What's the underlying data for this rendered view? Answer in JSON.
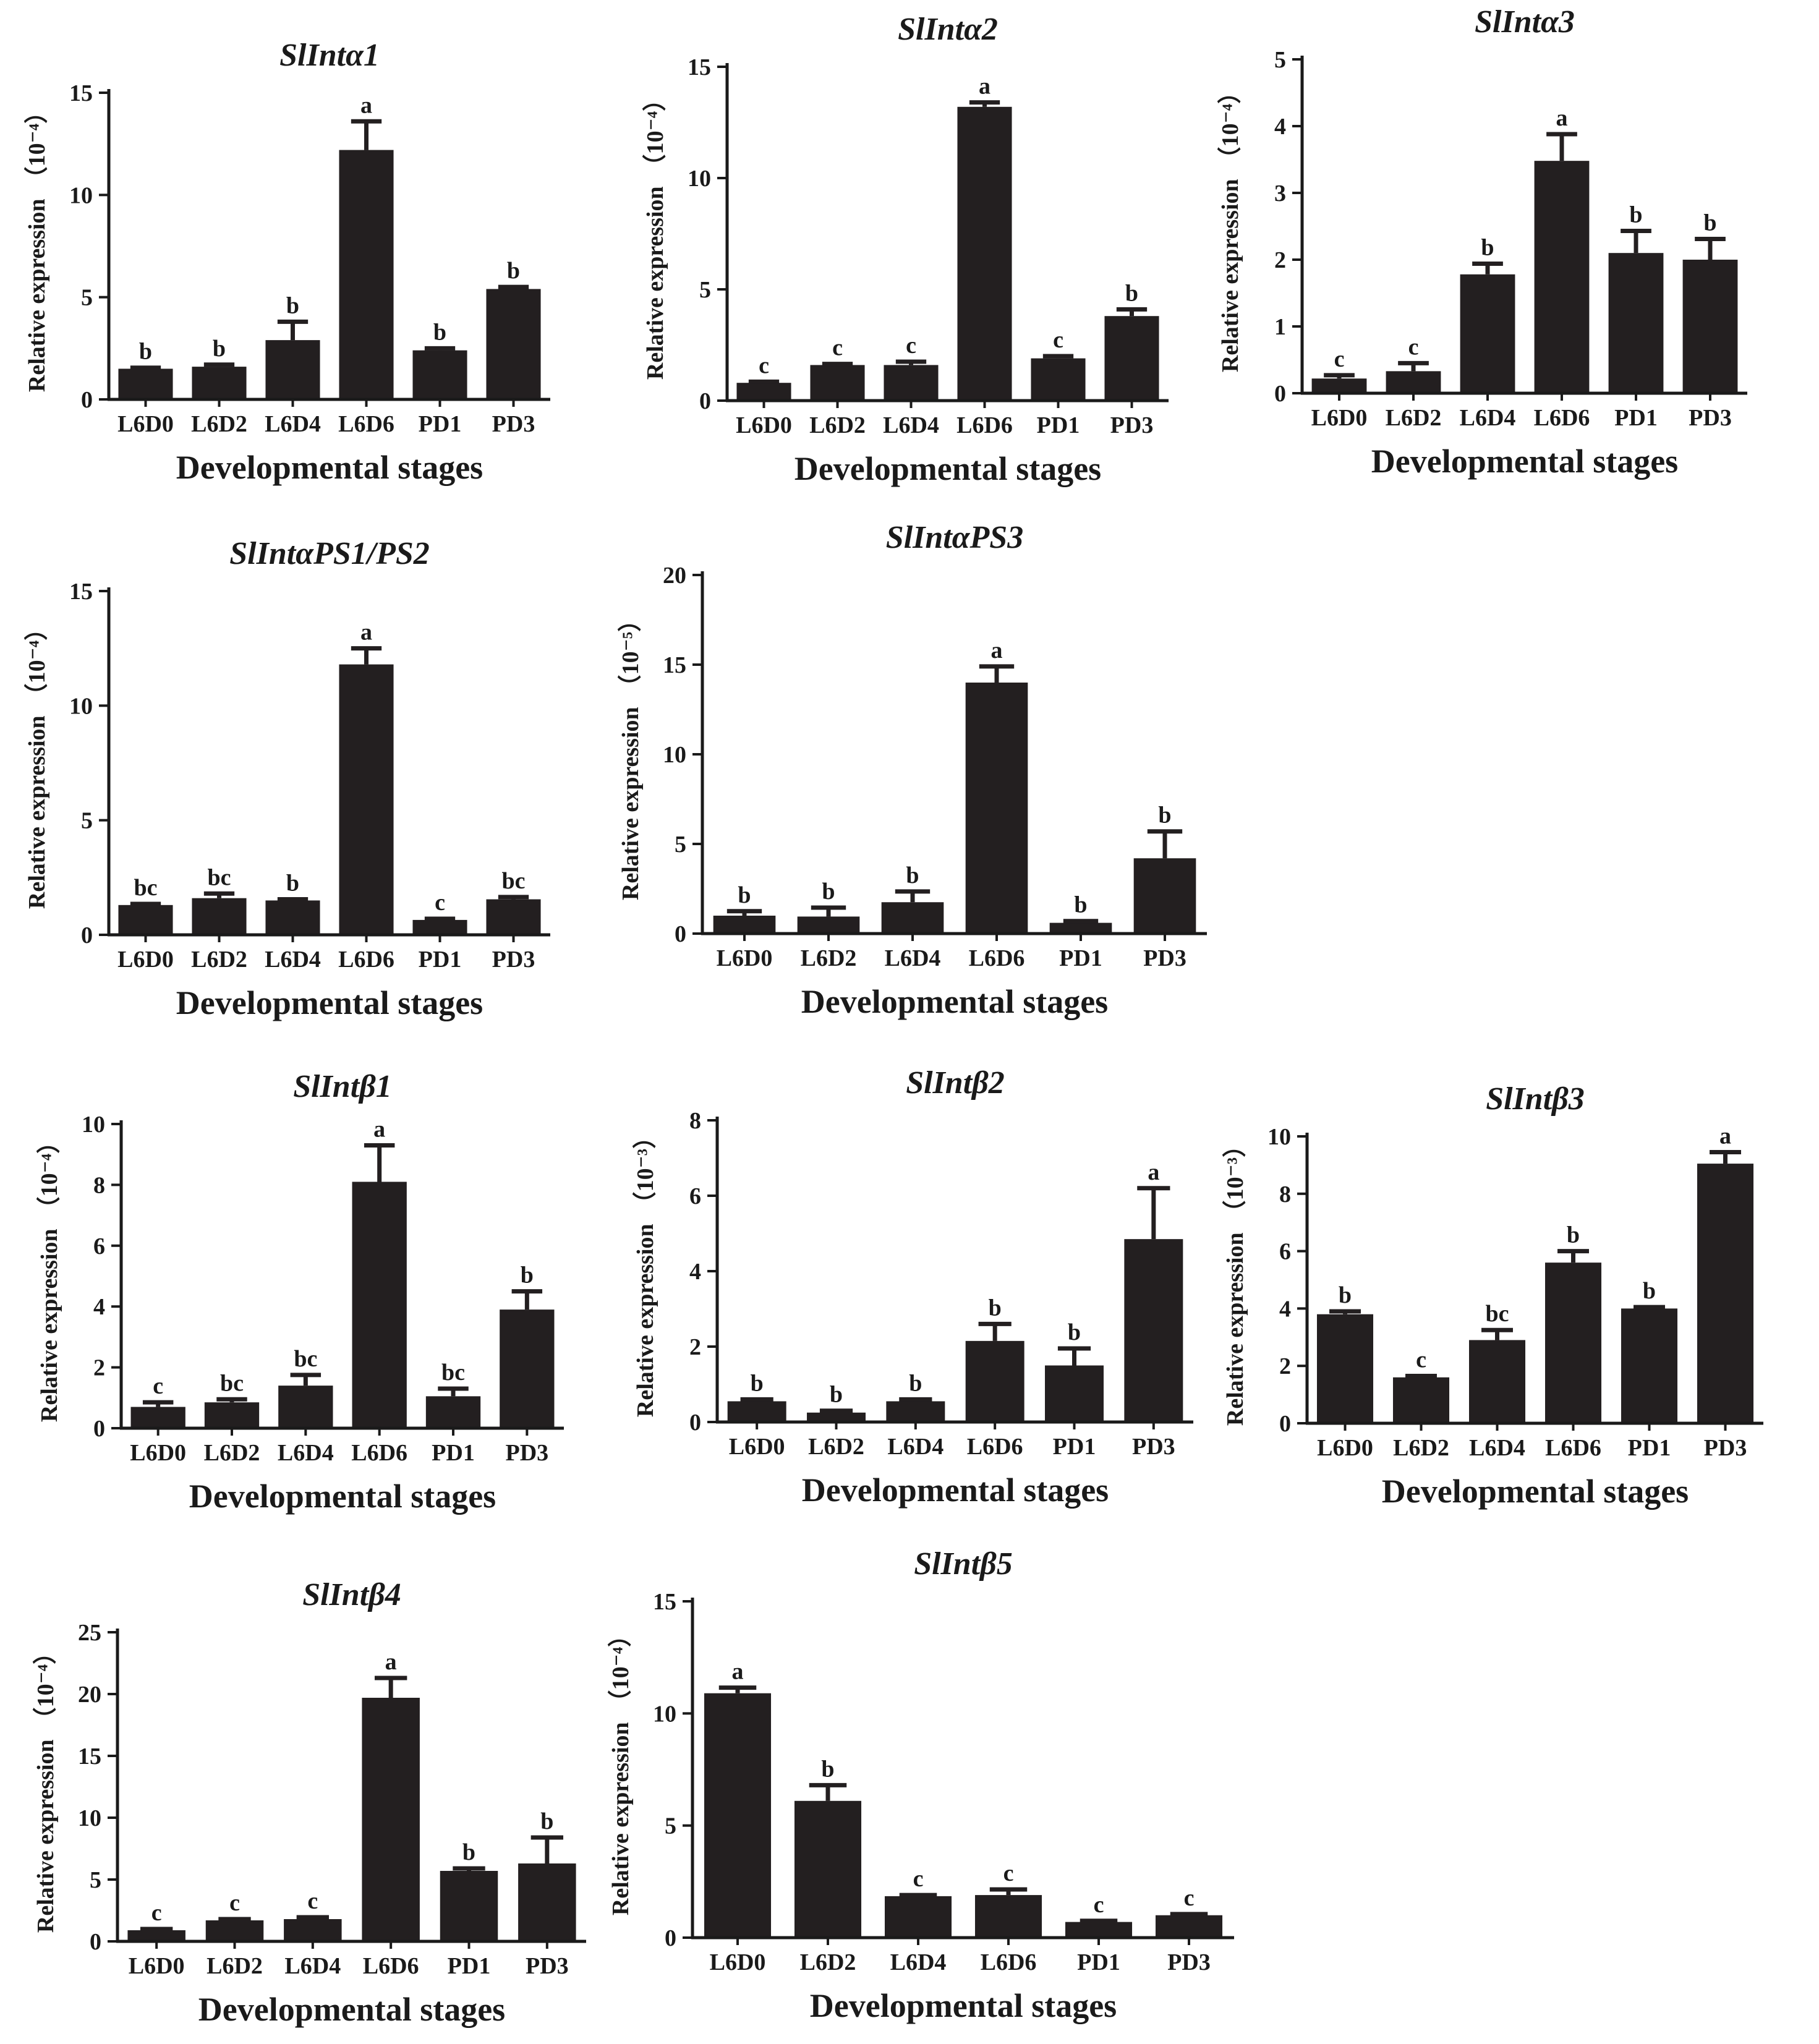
{
  "colors": {
    "bar": "#231f20",
    "axis": "#1a1a1a",
    "background": "#ffffff"
  },
  "chart_data": [
    {
      "type": "bar",
      "title": "SlIntα1",
      "xlabel": "Developmental stages",
      "ylabel": "Relative expression",
      "unit": "（10⁻⁴）",
      "categories": [
        "L6D0",
        "L6D2",
        "L6D4",
        "L6D6",
        "PD1",
        "PD3"
      ],
      "values": [
        1.5,
        1.6,
        2.9,
        12.2,
        2.4,
        5.4
      ],
      "errors": [
        0.05,
        0.1,
        0.9,
        1.4,
        0.1,
        0.1
      ],
      "letters": [
        "b",
        "b",
        "b",
        "a",
        "b",
        "b"
      ],
      "ylim": [
        0,
        15
      ],
      "yticks": [
        0,
        5,
        10,
        15
      ]
    },
    {
      "type": "bar",
      "title": "SlIntα2",
      "xlabel": "Developmental stages",
      "ylabel": "Relative expression",
      "unit": "（10⁻⁴）",
      "categories": [
        "L6D0",
        "L6D2",
        "L6D4",
        "L6D6",
        "PD1",
        "PD3"
      ],
      "values": [
        0.8,
        1.6,
        1.6,
        13.2,
        1.9,
        3.8
      ],
      "errors": [
        0.05,
        0.05,
        0.15,
        0.2,
        0.1,
        0.3
      ],
      "letters": [
        "c",
        "c",
        "c",
        "a",
        "c",
        "b"
      ],
      "ylim": [
        0,
        15
      ],
      "yticks": [
        0,
        5,
        10,
        15
      ]
    },
    {
      "type": "bar",
      "title": "SlIntα3",
      "xlabel": "Developmental stages",
      "ylabel": "Relative expression",
      "unit": "（10⁻⁴）",
      "categories": [
        "L6D0",
        "L6D2",
        "L6D4",
        "L6D6",
        "PD1",
        "PD3"
      ],
      "values": [
        0.22,
        0.33,
        1.78,
        3.48,
        2.1,
        2.0
      ],
      "errors": [
        0.05,
        0.12,
        0.16,
        0.4,
        0.33,
        0.31
      ],
      "letters": [
        "c",
        "c",
        "b",
        "a",
        "b",
        "b"
      ],
      "ylim": [
        0,
        5
      ],
      "yticks": [
        0,
        1,
        2,
        3,
        4,
        5
      ]
    },
    {
      "type": "bar",
      "title": "SlIntαPS1/PS2",
      "xlabel": "Developmental stages",
      "ylabel": "Relative expression",
      "unit": "（10⁻⁴）",
      "categories": [
        "L6D0",
        "L6D2",
        "L6D4",
        "L6D6",
        "PD1",
        "PD3"
      ],
      "values": [
        1.3,
        1.6,
        1.5,
        11.8,
        0.65,
        1.55
      ],
      "errors": [
        0.05,
        0.2,
        0.05,
        0.7,
        0.05,
        0.1
      ],
      "letters": [
        "bc",
        "bc",
        "b",
        "a",
        "c",
        "bc"
      ],
      "ylim": [
        0,
        15
      ],
      "yticks": [
        0,
        5,
        10,
        15
      ]
    },
    {
      "type": "bar",
      "title": "SlIntαPS3",
      "xlabel": "Developmental stages",
      "ylabel": "Relative expression",
      "unit": "（10⁻⁵）",
      "categories": [
        "L6D0",
        "L6D2",
        "L6D4",
        "L6D6",
        "PD1",
        "PD3"
      ],
      "values": [
        1.0,
        0.95,
        1.75,
        14.0,
        0.6,
        4.2
      ],
      "errors": [
        0.25,
        0.5,
        0.6,
        0.9,
        0.1,
        1.5
      ],
      "letters": [
        "b",
        "b",
        "b",
        "a",
        "b",
        "b"
      ],
      "ylim": [
        0,
        20
      ],
      "yticks": [
        0,
        5,
        10,
        15,
        20
      ]
    },
    {
      "type": "bar",
      "title": "SlIntβ1",
      "xlabel": "Developmental stages",
      "ylabel": "Relative expression",
      "unit": "（10⁻⁴）",
      "categories": [
        "L6D0",
        "L6D2",
        "L6D4",
        "L6D6",
        "PD1",
        "PD3"
      ],
      "values": [
        0.7,
        0.85,
        1.4,
        8.1,
        1.05,
        3.9
      ],
      "errors": [
        0.15,
        0.1,
        0.35,
        1.2,
        0.25,
        0.6
      ],
      "letters": [
        "c",
        "bc",
        "bc",
        "a",
        "bc",
        "b"
      ],
      "ylim": [
        0,
        10
      ],
      "yticks": [
        0,
        2,
        4,
        6,
        8,
        10
      ]
    },
    {
      "type": "bar",
      "title": "SlIntβ2",
      "xlabel": "Developmental stages",
      "ylabel": "Relative expression",
      "unit": "（10⁻³）",
      "categories": [
        "L6D0",
        "L6D2",
        "L6D4",
        "L6D6",
        "PD1",
        "PD3"
      ],
      "values": [
        0.55,
        0.25,
        0.55,
        2.15,
        1.5,
        4.85
      ],
      "errors": [
        0.05,
        0.05,
        0.05,
        0.45,
        0.45,
        1.35
      ],
      "letters": [
        "b",
        "b",
        "b",
        "b",
        "b",
        "a"
      ],
      "ylim": [
        0,
        8
      ],
      "yticks": [
        0,
        2,
        4,
        6,
        8
      ]
    },
    {
      "type": "bar",
      "title": "SlIntβ3",
      "xlabel": "Developmental stages",
      "ylabel": "Relative expression",
      "unit": "（10⁻³）",
      "categories": [
        "L6D0",
        "L6D2",
        "L6D4",
        "L6D6",
        "PD1",
        "PD3"
      ],
      "values": [
        3.8,
        1.6,
        2.9,
        5.6,
        4.0,
        9.05
      ],
      "errors": [
        0.1,
        0.05,
        0.35,
        0.4,
        0.05,
        0.4
      ],
      "letters": [
        "b",
        "c",
        "bc",
        "b",
        "b",
        "a"
      ],
      "ylim": [
        0,
        10
      ],
      "yticks": [
        0,
        2,
        4,
        6,
        8,
        10
      ]
    },
    {
      "type": "bar",
      "title": "SlIntβ4",
      "xlabel": "Developmental stages",
      "ylabel": "Relative expression",
      "unit": "（10⁻⁴）",
      "categories": [
        "L6D0",
        "L6D2",
        "L6D4",
        "L6D6",
        "PD1",
        "PD3"
      ],
      "values": [
        0.9,
        1.7,
        1.8,
        19.7,
        5.7,
        6.3
      ],
      "errors": [
        0.1,
        0.1,
        0.15,
        1.6,
        0.2,
        2.1
      ],
      "letters": [
        "c",
        "c",
        "c",
        "a",
        "b",
        "b"
      ],
      "ylim": [
        0,
        25
      ],
      "yticks": [
        0,
        5,
        10,
        15,
        20,
        25
      ]
    },
    {
      "type": "bar",
      "title": "SlIntβ5",
      "xlabel": "Developmental stages",
      "ylabel": "Relative expression",
      "unit": "（10⁻⁴）",
      "categories": [
        "L6D0",
        "L6D2",
        "L6D4",
        "L6D6",
        "PD1",
        "PD3"
      ],
      "values": [
        10.9,
        6.1,
        1.85,
        1.9,
        0.7,
        1.0
      ],
      "errors": [
        0.25,
        0.7,
        0.05,
        0.25,
        0.05,
        0.05
      ],
      "letters": [
        "a",
        "b",
        "c",
        "c",
        "c",
        "c"
      ],
      "ylim": [
        0,
        15
      ],
      "yticks": [
        0,
        5,
        10,
        15
      ]
    }
  ]
}
